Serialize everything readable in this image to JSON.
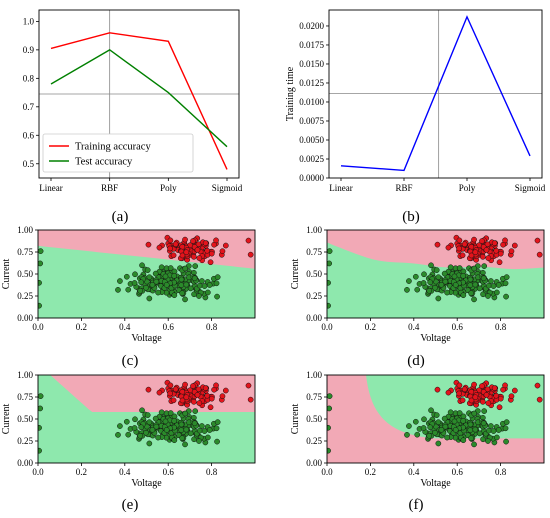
{
  "chart_data": [
    {
      "panel": "(a)",
      "type": "line",
      "categories": [
        "Linear",
        "RBF",
        "Poly",
        "Sigmoid"
      ],
      "yticks": [
        "0.5",
        "0.6",
        "0.7",
        "0.8",
        "0.9",
        "1.0"
      ],
      "ylim": [
        0.45,
        1.04
      ],
      "crosshair": {
        "x": 1.0,
        "y": 0.745
      },
      "legend": "lower-left",
      "series": [
        {
          "name": "Training accuracy",
          "color": "#ff0000",
          "values": [
            0.905,
            0.96,
            0.93,
            0.48
          ]
        },
        {
          "name": "Test accuracy",
          "color": "#008000",
          "values": [
            0.78,
            0.9,
            0.75,
            0.56
          ]
        }
      ]
    },
    {
      "panel": "(b)",
      "type": "line",
      "categories": [
        "Linear",
        "RBF",
        "Poly",
        "Sigmoid"
      ],
      "ylabel": "Training time",
      "yticks": [
        "0.0000",
        "0.0025",
        "0.0050",
        "0.0075",
        "0.0100",
        "0.0125",
        "0.0150",
        "0.0175",
        "0.0200"
      ],
      "ylim": [
        0,
        0.0221
      ],
      "crosshair": {
        "x": 1.55,
        "y": 0.0111
      },
      "series": [
        {
          "color": "#0000ff",
          "values": [
            0.0016,
            0.001,
            0.0212,
            0.0029
          ]
        }
      ]
    },
    {
      "panel": "(c)",
      "type": "scatter",
      "xlabel": "Voltage",
      "ylabel": "Current",
      "xlim": [
        0,
        1
      ],
      "ylim": [
        0,
        1
      ],
      "xticks": [
        "0.0",
        "0.2",
        "0.4",
        "0.6",
        "0.8"
      ],
      "yticks": [
        "0.00",
        "0.25",
        "0.50",
        "0.75",
        "1.00"
      ],
      "boundary": {
        "kind": "linear",
        "left_y": 0.82,
        "right_y": 0.56
      }
    },
    {
      "panel": "(d)",
      "type": "scatter",
      "xlabel": "Voltage",
      "ylabel": "Current",
      "xlim": [
        0,
        1
      ],
      "ylim": [
        0,
        1
      ],
      "xticks": [
        "0.0",
        "0.2",
        "0.4",
        "0.6",
        "0.8"
      ],
      "yticks": [
        "0.00",
        "0.25",
        "0.50",
        "0.75",
        "1.00"
      ],
      "boundary": {
        "kind": "rbf",
        "left_y": 0.86,
        "right_y": 0.56
      }
    },
    {
      "panel": "(e)",
      "type": "scatter",
      "xlabel": "Voltage",
      "ylabel": "Current",
      "xlim": [
        0,
        1
      ],
      "ylim": [
        0,
        1
      ],
      "xticks": [
        "0.0",
        "0.2",
        "0.4",
        "0.6",
        "0.8"
      ],
      "yticks": [
        "0.00",
        "0.25",
        "0.50",
        "0.75",
        "1.00"
      ],
      "boundary": {
        "kind": "poly"
      }
    },
    {
      "panel": "(f)",
      "type": "scatter",
      "xlabel": "Voltage",
      "ylabel": "Current",
      "xlim": [
        0,
        1
      ],
      "ylim": [
        0,
        1
      ],
      "xticks": [
        "0.0",
        "0.2",
        "0.4",
        "0.6",
        "0.8"
      ],
      "yticks": [
        "0.00",
        "0.25",
        "0.50",
        "0.75",
        "1.00"
      ],
      "boundary": {
        "kind": "sigmoid"
      }
    }
  ],
  "colors": {
    "region_red": "#f2a9b6",
    "region_green": "#8ee8ad",
    "point_red": "#e3141c",
    "point_green": "#2b8a2b",
    "point_edge": "#111111"
  }
}
